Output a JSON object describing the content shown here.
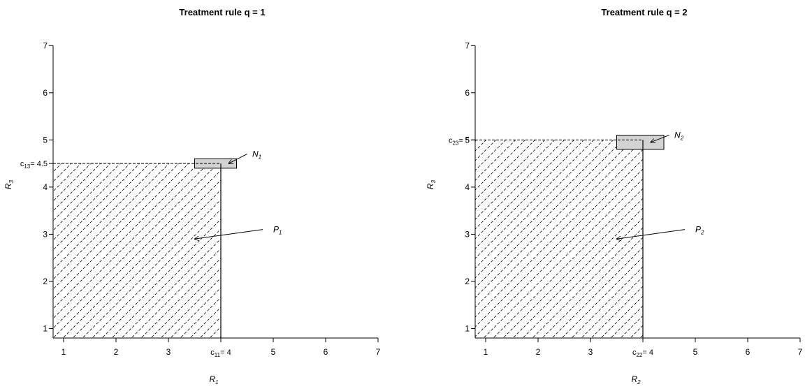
{
  "chart_data": [
    {
      "type": "region",
      "title": "Treatment rule q = 1",
      "xlabel": {
        "main": "R",
        "sub": "1"
      },
      "ylabel": {
        "main": "R",
        "sub": "3"
      },
      "xlim": [
        0.8,
        7.2
      ],
      "ylim": [
        0.8,
        7.3
      ],
      "xticks": [
        1,
        2,
        3,
        4,
        5,
        6,
        7
      ],
      "yticks": [
        1,
        2,
        3,
        4,
        5,
        6,
        7
      ],
      "x_axis_extent": [
        0.8,
        7.0
      ],
      "y_axis_extent": [
        0.8,
        7.0
      ],
      "hatched_region": {
        "x": [
          0.8,
          4.0
        ],
        "y": [
          0.8,
          4.5
        ]
      },
      "shaded_box": {
        "x": [
          3.5,
          4.3
        ],
        "y": [
          4.4,
          4.6
        ]
      },
      "x_cut": {
        "prefix": "c",
        "sub": "11",
        "suffix": "= 4",
        "value": 4
      },
      "y_cut": {
        "prefix": "c",
        "sub": "13",
        "suffix": "= 4.5",
        "value": 4.5
      },
      "annotations": [
        {
          "main": "N",
          "sub": "1",
          "label_at": [
            4.6,
            4.7
          ],
          "arrow_from": [
            4.5,
            4.7
          ],
          "arrow_to": [
            4.15,
            4.5
          ]
        },
        {
          "main": "P",
          "sub": "1",
          "label_at": [
            5.0,
            3.1
          ],
          "arrow_from": [
            4.8,
            3.1
          ],
          "arrow_to": [
            3.5,
            2.9
          ]
        }
      ]
    },
    {
      "type": "region",
      "title": "Treatment rule q = 2",
      "xlabel": {
        "main": "R",
        "sub": "2"
      },
      "ylabel": {
        "main": "R",
        "sub": "3"
      },
      "xlim": [
        0.8,
        7.2
      ],
      "ylim": [
        0.8,
        7.3
      ],
      "xticks": [
        1,
        2,
        3,
        4,
        5,
        6,
        7
      ],
      "yticks": [
        1,
        2,
        3,
        4,
        5,
        6,
        7
      ],
      "x_axis_extent": [
        0.8,
        7.0
      ],
      "y_axis_extent": [
        0.8,
        7.0
      ],
      "hatched_region": {
        "x": [
          0.8,
          4.0
        ],
        "y": [
          0.8,
          5.0
        ]
      },
      "shaded_box": {
        "x": [
          3.5,
          4.4
        ],
        "y": [
          4.8,
          5.1
        ]
      },
      "x_cut": {
        "prefix": "c",
        "sub": "22",
        "suffix": "= 4",
        "value": 4
      },
      "y_cut": {
        "prefix": "c",
        "sub": "23",
        "suffix": "= 5",
        "value": 5
      },
      "annotations": [
        {
          "main": "N",
          "sub": "2",
          "label_at": [
            4.6,
            5.1
          ],
          "arrow_from": [
            4.5,
            5.1
          ],
          "arrow_to": [
            4.15,
            4.95
          ]
        },
        {
          "main": "P",
          "sub": "2",
          "label_at": [
            5.0,
            3.1
          ],
          "arrow_from": [
            4.8,
            3.1
          ],
          "arrow_to": [
            3.5,
            2.9
          ]
        }
      ]
    }
  ]
}
